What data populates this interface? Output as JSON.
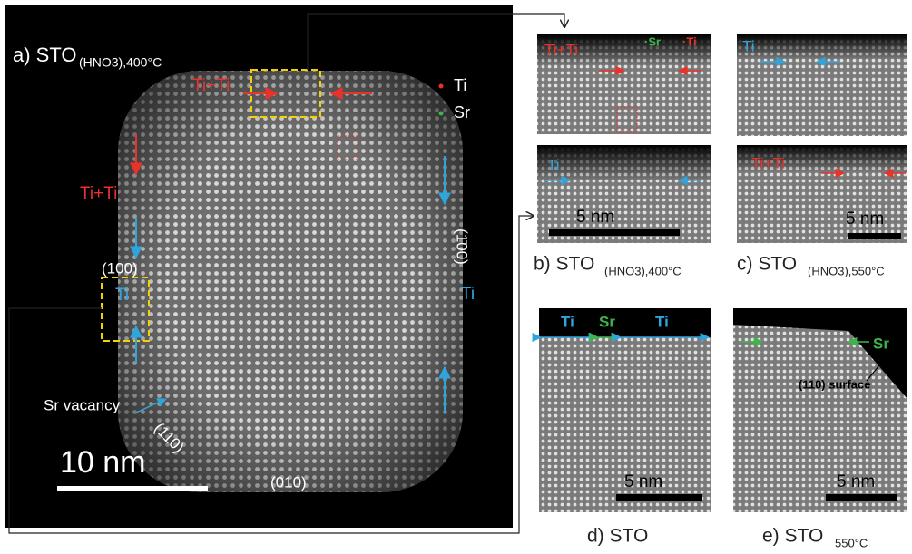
{
  "panel_a": {
    "label": "a) STO",
    "label_sub": "(HNO3),400°C",
    "top_label": "Ti+Ti",
    "legend_ti": "Ti",
    "legend_sr": "Sr",
    "left_label": "Ti+Ti",
    "facet_left": "(100)",
    "left_ti": "Ti",
    "facet_right": "(1̄00)",
    "right_ti": "Ti",
    "sr_vacancy": "Sr vacancy",
    "facet_110": "(110)",
    "scale": "10 nm",
    "facet_bottom": "(010)"
  },
  "panel_b": {
    "top_label": "Ti+Ti",
    "top_sr": "·Sr",
    "top_ti": "·Ti",
    "bottom_label": "Ti",
    "scale": "5 nm",
    "caption": "b) STO",
    "caption_sub": "(HNO3),400°C"
  },
  "panel_c": {
    "top_label": "Ti",
    "bottom_label": "Ti+Ti",
    "scale": "5 nm",
    "caption": "c) STO",
    "caption_sub": "(HNO3),550°C"
  },
  "panel_d": {
    "label_ti_left": "Ti",
    "label_sr": "Sr",
    "label_ti_right": "Ti",
    "scale": "5 nm",
    "caption": "d) STO"
  },
  "panel_e": {
    "label_sr": "Sr",
    "surface": "(110) surface",
    "scale": "5 nm",
    "caption": "e) STO",
    "caption_sub": "550°C"
  }
}
